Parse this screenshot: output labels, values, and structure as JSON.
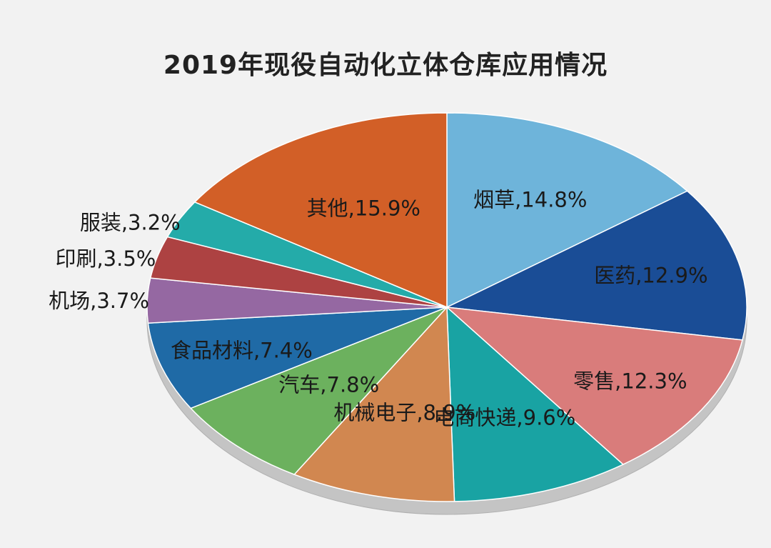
{
  "chart_data": {
    "type": "pie",
    "title": "2019年现役自动化立体仓库应用情况",
    "slices": [
      {
        "name": "烟草",
        "value": 14.8,
        "label": "烟草,14.8%",
        "color": "#6eb4da"
      },
      {
        "name": "医药",
        "value": 12.9,
        "label": "医药,12.9%",
        "color": "#1a4d96"
      },
      {
        "name": "零售",
        "value": 12.3,
        "label": "零售,12.3%",
        "color": "#d97c7b"
      },
      {
        "name": "电商快递",
        "value": 9.6,
        "label": "电商快递,9.6%",
        "color": "#19a3a3"
      },
      {
        "name": "机械电子",
        "value": 8.9,
        "label": "机械电子,8.9%",
        "color": "#d18750"
      },
      {
        "name": "汽车",
        "value": 7.8,
        "label": "汽车,7.8%",
        "color": "#6cb15e"
      },
      {
        "name": "食品材料",
        "value": 7.4,
        "label": "食品材料,7.4%",
        "color": "#1f6aa6"
      },
      {
        "name": "机场",
        "value": 3.7,
        "label": "机场,3.7%",
        "color": "#9568a2"
      },
      {
        "name": "印刷",
        "value": 3.5,
        "label": "印刷,3.5%",
        "color": "#ad4242"
      },
      {
        "name": "服装",
        "value": 3.2,
        "label": "服装,3.2%",
        "color": "#24aba9"
      },
      {
        "name": "其他",
        "value": 15.9,
        "label": "其他,15.9%",
        "color": "#d25f27"
      }
    ],
    "start_direction": "top",
    "rotation": "clockwise",
    "style": "3d-tilted"
  }
}
